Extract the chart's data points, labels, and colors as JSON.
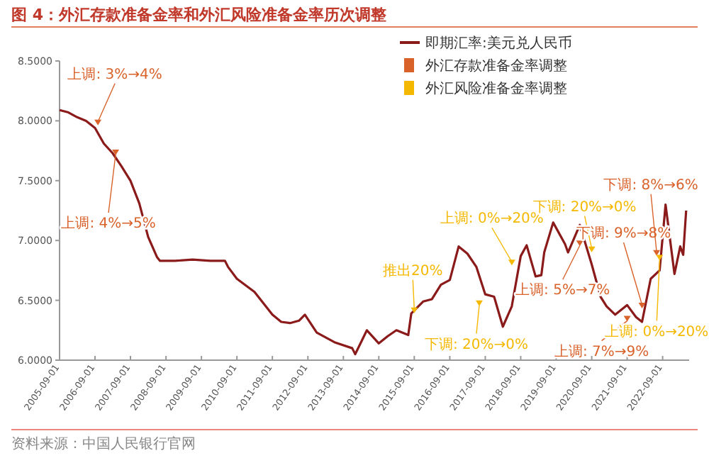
{
  "chart_data": {
    "type": "line",
    "title": "图 4：外汇存款准备金率和外汇风险准备金率历次调整",
    "xlim": [
      "2005-09-01",
      "2023-06-01"
    ],
    "xticks": [
      "2005-09-01",
      "2006-09-01",
      "2007-09-01",
      "2008-09-01",
      "2009-09-01",
      "2010-09-01",
      "2011-09-01",
      "2012-09-01",
      "2013-09-01",
      "2014-09-01",
      "2015-09-01",
      "2016-09-01",
      "2017-09-01",
      "2018-09-01",
      "2019-09-01",
      "2020-09-01",
      "2021-09-01",
      "2022-09-01"
    ],
    "ylim": [
      6.0,
      8.5
    ],
    "yticks": [
      {
        "value": 6.0,
        "label": "6.0000"
      },
      {
        "value": 6.5,
        "label": "6.5000"
      },
      {
        "value": 7.0,
        "label": "7.0000"
      },
      {
        "value": 7.5,
        "label": "7.5000"
      },
      {
        "value": 8.0,
        "label": "8.0000"
      },
      {
        "value": 8.5,
        "label": "8.5000"
      }
    ],
    "legend": "top right",
    "series": [
      {
        "name": "即期汇率:美元兑人民币",
        "color": "#8b1a1a",
        "x": [
          "2005-09",
          "2005-12",
          "2006-03",
          "2006-06",
          "2006-09",
          "2006-12",
          "2007-03",
          "2007-06",
          "2007-09",
          "2007-12",
          "2008-03",
          "2008-06",
          "2008-07",
          "2008-09",
          "2008-12",
          "2009-06",
          "2009-12",
          "2010-05",
          "2010-06",
          "2010-09",
          "2011-03",
          "2011-09",
          "2011-12",
          "2012-03",
          "2012-06",
          "2012-08",
          "2012-12",
          "2013-06",
          "2013-12",
          "2014-01",
          "2014-05",
          "2014-09",
          "2014-12",
          "2015-03",
          "2015-07",
          "2015-08",
          "2015-12",
          "2016-03",
          "2016-06",
          "2016-09",
          "2016-12",
          "2017-03",
          "2017-06",
          "2017-09",
          "2017-12",
          "2018-03",
          "2018-06",
          "2018-09",
          "2018-11",
          "2019-02",
          "2019-04",
          "2019-05",
          "2019-08",
          "2019-12",
          "2020-01",
          "2020-05",
          "2020-09",
          "2020-12",
          "2021-02",
          "2021-05",
          "2021-09",
          "2021-12",
          "2022-02",
          "2022-05",
          "2022-08",
          "2022-10",
          "2023-01",
          "2023-03",
          "2023-04",
          "2023-05"
        ],
        "values": [
          8.09,
          8.07,
          8.03,
          8.0,
          7.94,
          7.81,
          7.73,
          7.62,
          7.5,
          7.31,
          7.03,
          6.86,
          6.83,
          6.83,
          6.83,
          6.84,
          6.83,
          6.83,
          6.78,
          6.68,
          6.57,
          6.38,
          6.32,
          6.31,
          6.33,
          6.38,
          6.23,
          6.15,
          6.1,
          6.05,
          6.25,
          6.14,
          6.2,
          6.25,
          6.21,
          6.39,
          6.49,
          6.51,
          6.63,
          6.67,
          6.95,
          6.89,
          6.78,
          6.55,
          6.53,
          6.28,
          6.45,
          6.87,
          6.96,
          6.7,
          6.71,
          6.9,
          7.15,
          6.97,
          6.9,
          7.13,
          6.8,
          6.53,
          6.45,
          6.38,
          6.46,
          6.36,
          6.32,
          6.68,
          6.75,
          7.3,
          6.72,
          6.95,
          6.88,
          7.25
        ]
      },
      {
        "name": "外汇存款准备金率调整",
        "type": "scatter",
        "marker": "triangle",
        "color": "#d9622b",
        "x": [
          "2006-10",
          "2007-04",
          "2020-05",
          "2021-09",
          "2022-02",
          "2022-07"
        ],
        "values": [
          7.98,
          7.73,
          6.97,
          6.34,
          6.45,
          6.89
        ]
      },
      {
        "name": "外汇风险准备金率调整",
        "type": "scatter",
        "marker": "triangle",
        "color": "#f5b800",
        "x": [
          "2015-09",
          "2017-07",
          "2018-06",
          "2020-09",
          "2022-08"
        ],
        "values": [
          6.41,
          6.47,
          6.81,
          6.92,
          6.85
        ]
      }
    ],
    "annotations": [
      {
        "text": "上调: 3%→4%",
        "x": "2006-10",
        "y": 7.98
      },
      {
        "text": "上调: 4%→5%",
        "x": "2007-04",
        "y": 7.73
      },
      {
        "text": "推出20%",
        "x": "2015-09",
        "y": 6.41
      },
      {
        "text": "下调: 20%→0%",
        "x": "2017-07",
        "y": 6.47
      },
      {
        "text": "上调: 0%→20%",
        "x": "2018-06",
        "y": 6.81
      },
      {
        "text": "上调: 5%→7%",
        "x": "2020-05",
        "y": 6.97
      },
      {
        "text": "下调: 20%→0%",
        "x": "2020-09",
        "y": 6.92
      },
      {
        "text": "下调: 9%→8%",
        "x": "2022-02",
        "y": 6.45
      },
      {
        "text": "上调: 7%→9%",
        "x": "2021-09",
        "y": 6.34
      },
      {
        "text": "上调: 0%→20%",
        "x": "2022-08",
        "y": 6.85
      },
      {
        "text": "下调: 8%→6%",
        "x": "2022-07",
        "y": 6.89
      },
      "资料来源：中国人民银行官网"
    ]
  }
}
